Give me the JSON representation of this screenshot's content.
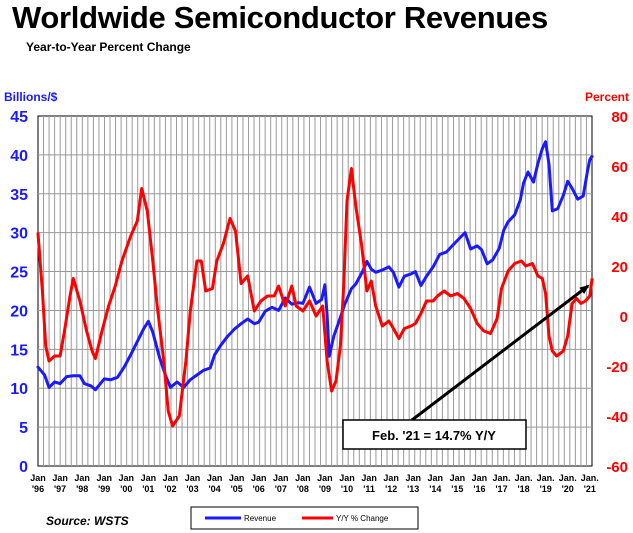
{
  "title": "Worldwide Semiconductor Revenues",
  "subtitle": "Year-to-Year Percent Change",
  "source": "Source: WSTS",
  "chart_data": {
    "type": "line",
    "title": "Worldwide Semiconductor Revenues",
    "subtitle": "Year-to-Year Percent Change",
    "left_axis": {
      "label": "Billions/$",
      "range": [
        0,
        45
      ],
      "ticks": [
        "0",
        "5",
        "10",
        "15",
        "20",
        "25",
        "30",
        "35",
        "40",
        "45"
      ],
      "color": "#1a1aff"
    },
    "right_axis": {
      "label": "Percent",
      "range": [
        -60,
        80
      ],
      "ticks": [
        "-60",
        "-40",
        "-20",
        "0",
        "20",
        "40",
        "60",
        "80"
      ],
      "color": "#ff0000"
    },
    "x_axis": {
      "range": [
        1996.0,
        2021.1
      ],
      "tick_labels": [
        {
          "x": 1996,
          "line1": "Jan",
          "line2": "'96"
        },
        {
          "x": 1997,
          "line1": "Jan",
          "line2": "'97"
        },
        {
          "x": 1998,
          "line1": "Jan",
          "line2": "'98"
        },
        {
          "x": 1999,
          "line1": "Jan",
          "line2": "'99"
        },
        {
          "x": 2000,
          "line1": "Jan",
          "line2": "'00"
        },
        {
          "x": 2001,
          "line1": "Jan",
          "line2": "'01"
        },
        {
          "x": 2002,
          "line1": "Jan",
          "line2": "'02"
        },
        {
          "x": 2003,
          "line1": "Jan",
          "line2": "'03"
        },
        {
          "x": 2004,
          "line1": "Jan",
          "line2": "'04"
        },
        {
          "x": 2005,
          "line1": "Jan",
          "line2": "'05"
        },
        {
          "x": 2006,
          "line1": "Jan",
          "line2": "'06"
        },
        {
          "x": 2007,
          "line1": "Jan",
          "line2": "'07"
        },
        {
          "x": 2008,
          "line1": "Jan",
          "line2": "'08"
        },
        {
          "x": 2009,
          "line1": "Jan",
          "line2": "'09"
        },
        {
          "x": 2010,
          "line1": "Jan",
          "line2": "'10"
        },
        {
          "x": 2011,
          "line1": "Jan",
          "line2": "'11"
        },
        {
          "x": 2012,
          "line1": "Jan",
          "line2": "'12"
        },
        {
          "x": 2013,
          "line1": "Jan",
          "line2": "'13"
        },
        {
          "x": 2014,
          "line1": "Jan",
          "line2": "'14"
        },
        {
          "x": 2015,
          "line1": "Jan",
          "line2": "'15"
        },
        {
          "x": 2016,
          "line1": "Jan",
          "line2": "'16"
        },
        {
          "x": 2017,
          "line1": "Jan.",
          "line2": "'17"
        },
        {
          "x": 2018,
          "line1": "Jan.",
          "line2": "'18"
        },
        {
          "x": 2019,
          "line1": "Jan.",
          "line2": "'19"
        },
        {
          "x": 2020,
          "line1": "Jan.",
          "line2": "'20"
        },
        {
          "x": 2021,
          "line1": "Jan.",
          "line2": "'21"
        }
      ]
    },
    "grid": true,
    "legend_position": "bottom",
    "series": [
      {
        "name": "Revenue",
        "axis": "left",
        "color": "#1a1aff",
        "points": [
          [
            1996.0,
            12.7
          ],
          [
            1996.3,
            11.7
          ],
          [
            1996.5,
            10.1
          ],
          [
            1996.75,
            10.8
          ],
          [
            1997.0,
            10.6
          ],
          [
            1997.3,
            11.5
          ],
          [
            1997.6,
            11.6
          ],
          [
            1997.9,
            11.6
          ],
          [
            1998.1,
            10.6
          ],
          [
            1998.4,
            10.3
          ],
          [
            1998.6,
            9.8
          ],
          [
            1998.8,
            10.5
          ],
          [
            1999.0,
            11.2
          ],
          [
            1999.3,
            11.1
          ],
          [
            1999.6,
            11.4
          ],
          [
            1999.9,
            12.7
          ],
          [
            2000.2,
            14.3
          ],
          [
            2000.5,
            16.0
          ],
          [
            2000.8,
            17.7
          ],
          [
            2001.0,
            18.6
          ],
          [
            2001.2,
            17.2
          ],
          [
            2001.5,
            14.0
          ],
          [
            2001.8,
            11.5
          ],
          [
            2002.0,
            10.1
          ],
          [
            2002.3,
            10.8
          ],
          [
            2002.6,
            10.1
          ],
          [
            2002.9,
            11.1
          ],
          [
            2003.2,
            11.7
          ],
          [
            2003.5,
            12.3
          ],
          [
            2003.8,
            12.6
          ],
          [
            2004.0,
            14.3
          ],
          [
            2004.3,
            15.6
          ],
          [
            2004.6,
            16.7
          ],
          [
            2004.9,
            17.6
          ],
          [
            2005.2,
            18.3
          ],
          [
            2005.5,
            18.9
          ],
          [
            2005.8,
            18.3
          ],
          [
            2006.0,
            18.5
          ],
          [
            2006.3,
            19.9
          ],
          [
            2006.6,
            20.4
          ],
          [
            2006.9,
            20.0
          ],
          [
            2007.2,
            21.6
          ],
          [
            2007.5,
            20.8
          ],
          [
            2007.8,
            21.0
          ],
          [
            2008.0,
            20.9
          ],
          [
            2008.3,
            23.0
          ],
          [
            2008.6,
            20.9
          ],
          [
            2008.85,
            21.4
          ],
          [
            2009.0,
            23.3
          ],
          [
            2009.1,
            19.4
          ],
          [
            2009.2,
            14.1
          ],
          [
            2009.4,
            16.7
          ],
          [
            2009.6,
            18.3
          ],
          [
            2009.9,
            20.8
          ],
          [
            2010.2,
            22.8
          ],
          [
            2010.4,
            23.4
          ],
          [
            2010.7,
            25.0
          ],
          [
            2010.9,
            26.3
          ],
          [
            2011.1,
            25.3
          ],
          [
            2011.3,
            24.9
          ],
          [
            2011.6,
            25.2
          ],
          [
            2011.9,
            25.6
          ],
          [
            2012.1,
            24.9
          ],
          [
            2012.35,
            23.0
          ],
          [
            2012.6,
            24.4
          ],
          [
            2012.9,
            24.7
          ],
          [
            2013.1,
            25.0
          ],
          [
            2013.35,
            23.2
          ],
          [
            2013.6,
            24.4
          ],
          [
            2013.9,
            25.6
          ],
          [
            2014.2,
            27.2
          ],
          [
            2014.5,
            27.5
          ],
          [
            2014.8,
            28.4
          ],
          [
            2015.1,
            29.3
          ],
          [
            2015.35,
            30.0
          ],
          [
            2015.6,
            27.9
          ],
          [
            2015.9,
            28.3
          ],
          [
            2016.1,
            27.8
          ],
          [
            2016.35,
            26.0
          ],
          [
            2016.6,
            26.5
          ],
          [
            2016.9,
            28.0
          ],
          [
            2017.1,
            30.3
          ],
          [
            2017.3,
            31.4
          ],
          [
            2017.6,
            32.3
          ],
          [
            2017.85,
            34.2
          ],
          [
            2018.0,
            36.4
          ],
          [
            2018.2,
            37.8
          ],
          [
            2018.45,
            36.5
          ],
          [
            2018.65,
            38.9
          ],
          [
            2018.85,
            40.8
          ],
          [
            2019.0,
            41.7
          ],
          [
            2019.15,
            38.8
          ],
          [
            2019.3,
            32.8
          ],
          [
            2019.55,
            33.1
          ],
          [
            2019.8,
            34.8
          ],
          [
            2020.0,
            36.6
          ],
          [
            2020.2,
            35.7
          ],
          [
            2020.45,
            34.3
          ],
          [
            2020.7,
            34.7
          ],
          [
            2020.9,
            38.0
          ],
          [
            2021.0,
            39.4
          ],
          [
            2021.1,
            39.8
          ]
        ]
      },
      {
        "name": "Y/Y % Change",
        "axis": "right",
        "color": "#ff0000",
        "points": [
          [
            1996.0,
            33
          ],
          [
            1996.2,
            10
          ],
          [
            1996.35,
            -12
          ],
          [
            1996.5,
            -18
          ],
          [
            1996.75,
            -16
          ],
          [
            1997.0,
            -16
          ],
          [
            1997.2,
            -6
          ],
          [
            1997.45,
            8
          ],
          [
            1997.6,
            15
          ],
          [
            1997.9,
            6
          ],
          [
            1998.2,
            -6
          ],
          [
            1998.45,
            -14
          ],
          [
            1998.6,
            -17
          ],
          [
            1998.9,
            -6
          ],
          [
            1999.2,
            4
          ],
          [
            1999.5,
            12
          ],
          [
            1999.8,
            22
          ],
          [
            2000.0,
            27
          ],
          [
            2000.2,
            32
          ],
          [
            2000.5,
            38
          ],
          [
            2000.7,
            51
          ],
          [
            2000.95,
            42
          ],
          [
            2001.2,
            22
          ],
          [
            2001.4,
            4
          ],
          [
            2001.7,
            -18
          ],
          [
            2001.9,
            -38
          ],
          [
            2002.1,
            -44
          ],
          [
            2002.4,
            -40
          ],
          [
            2002.7,
            -18
          ],
          [
            2002.9,
            2
          ],
          [
            2003.2,
            22
          ],
          [
            2003.4,
            22
          ],
          [
            2003.6,
            10
          ],
          [
            2003.9,
            11
          ],
          [
            2004.1,
            22
          ],
          [
            2004.4,
            29
          ],
          [
            2004.7,
            39
          ],
          [
            2004.95,
            34
          ],
          [
            2005.2,
            13
          ],
          [
            2005.5,
            16
          ],
          [
            2005.8,
            2
          ],
          [
            2006.1,
            6
          ],
          [
            2006.4,
            8
          ],
          [
            2006.7,
            8
          ],
          [
            2006.9,
            12
          ],
          [
            2007.2,
            4
          ],
          [
            2007.5,
            12
          ],
          [
            2007.7,
            4
          ],
          [
            2008.0,
            2
          ],
          [
            2008.3,
            6
          ],
          [
            2008.6,
            0
          ],
          [
            2008.9,
            4
          ],
          [
            2009.1,
            -18
          ],
          [
            2009.3,
            -30
          ],
          [
            2009.5,
            -26
          ],
          [
            2009.7,
            -12
          ],
          [
            2009.85,
            12
          ],
          [
            2010.0,
            46
          ],
          [
            2010.2,
            59
          ],
          [
            2010.4,
            44
          ],
          [
            2010.65,
            29
          ],
          [
            2010.9,
            10
          ],
          [
            2011.1,
            14
          ],
          [
            2011.3,
            4
          ],
          [
            2011.6,
            -4
          ],
          [
            2011.9,
            -2
          ],
          [
            2012.1,
            -5
          ],
          [
            2012.35,
            -9
          ],
          [
            2012.6,
            -5
          ],
          [
            2012.9,
            -4
          ],
          [
            2013.1,
            -3
          ],
          [
            2013.35,
            1
          ],
          [
            2013.6,
            6
          ],
          [
            2013.9,
            6
          ],
          [
            2014.1,
            8
          ],
          [
            2014.4,
            10
          ],
          [
            2014.7,
            8
          ],
          [
            2015.0,
            9
          ],
          [
            2015.3,
            7
          ],
          [
            2015.6,
            3
          ],
          [
            2015.9,
            -3
          ],
          [
            2016.2,
            -6
          ],
          [
            2016.5,
            -7
          ],
          [
            2016.8,
            -1
          ],
          [
            2017.0,
            11
          ],
          [
            2017.3,
            18
          ],
          [
            2017.6,
            21
          ],
          [
            2017.9,
            22
          ],
          [
            2018.1,
            20
          ],
          [
            2018.4,
            21
          ],
          [
            2018.65,
            16
          ],
          [
            2018.85,
            15
          ],
          [
            2019.0,
            9
          ],
          [
            2019.15,
            -8
          ],
          [
            2019.3,
            -14
          ],
          [
            2019.5,
            -16
          ],
          [
            2019.8,
            -14
          ],
          [
            2020.0,
            -8
          ],
          [
            2020.2,
            5
          ],
          [
            2020.4,
            7
          ],
          [
            2020.6,
            5
          ],
          [
            2020.8,
            6
          ],
          [
            2021.0,
            8
          ],
          [
            2021.1,
            14.7
          ]
        ]
      }
    ],
    "annotation": {
      "text": "Feb. '21 = 14.7% Y/Y",
      "points_to": {
        "x": 2021.1,
        "y": 14.7,
        "axis": "right"
      }
    }
  }
}
